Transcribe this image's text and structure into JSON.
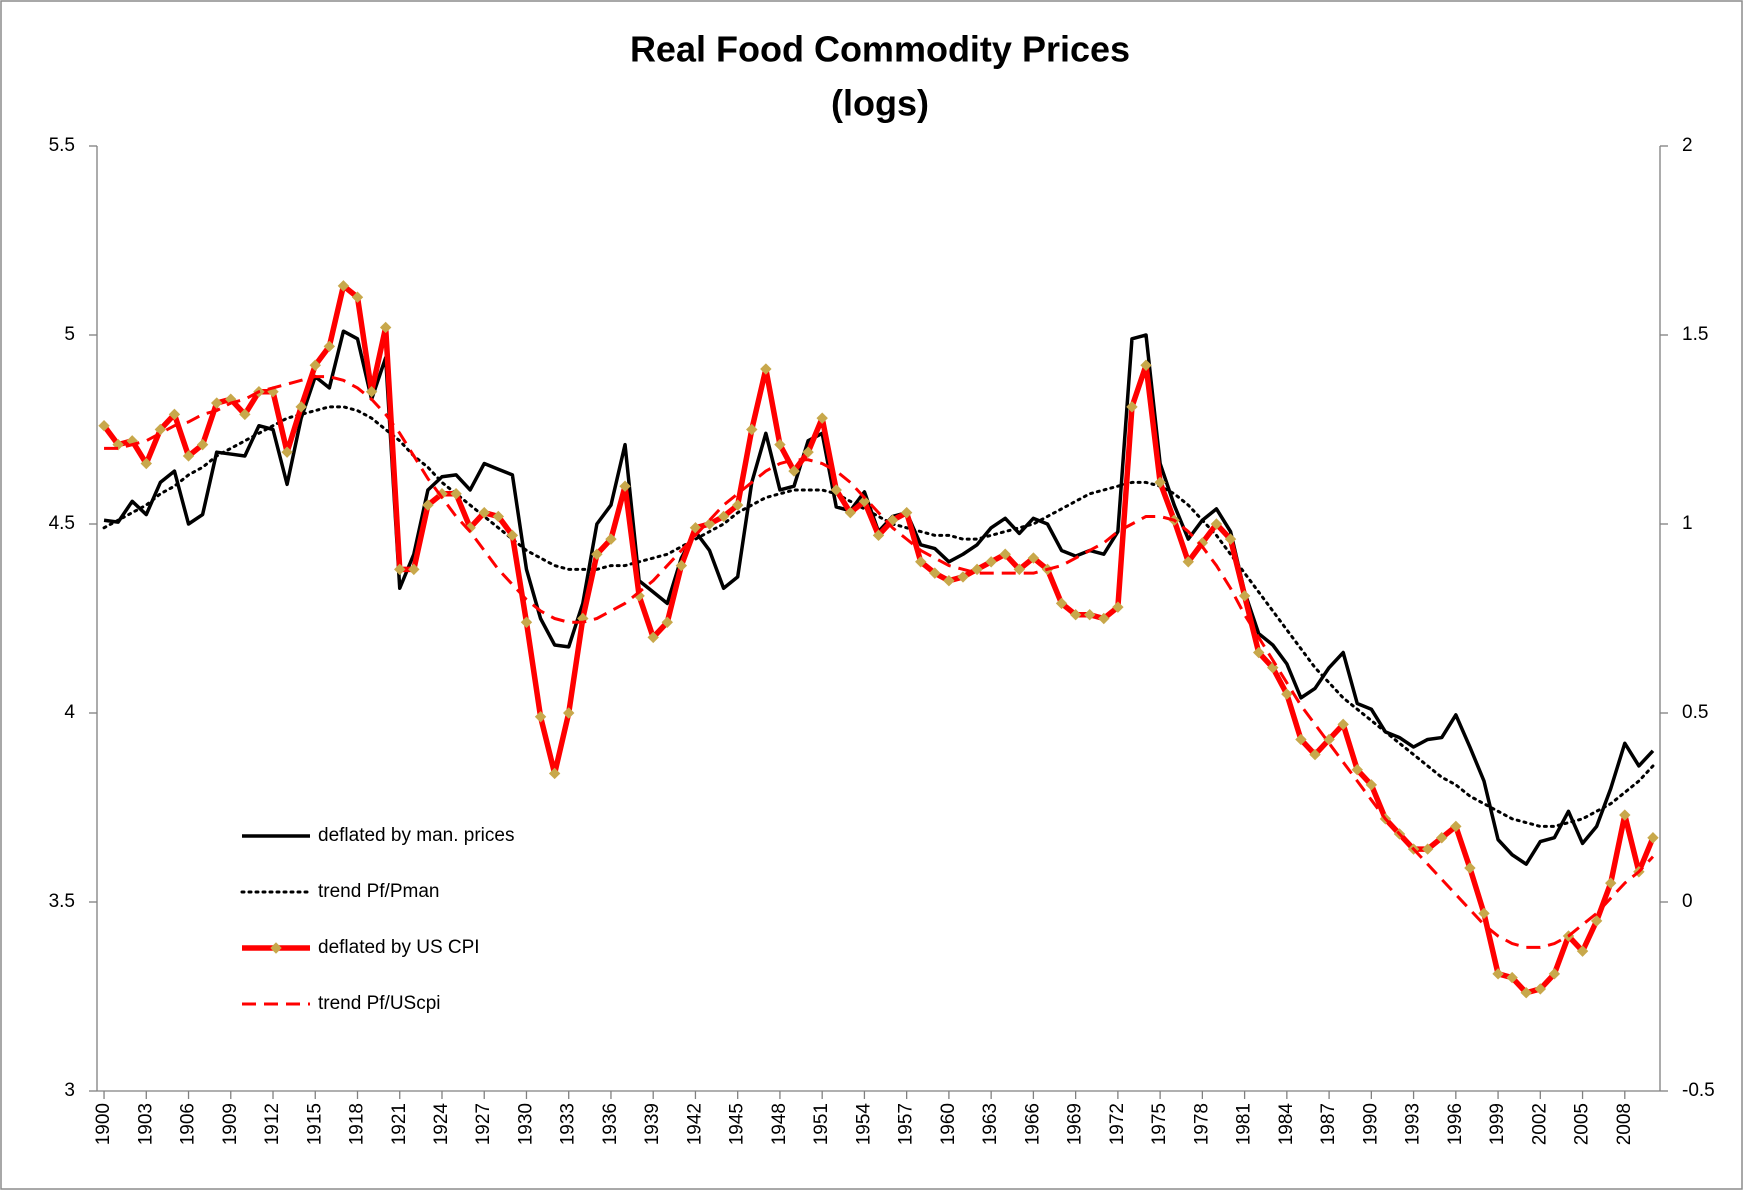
{
  "chart_data": {
    "type": "line",
    "title": "Real Food Commodity Prices",
    "subtitle": "(logs)",
    "x": [
      1900,
      1901,
      1902,
      1903,
      1904,
      1905,
      1906,
      1907,
      1908,
      1909,
      1910,
      1911,
      1912,
      1913,
      1914,
      1915,
      1916,
      1917,
      1918,
      1919,
      1920,
      1921,
      1922,
      1923,
      1924,
      1925,
      1926,
      1927,
      1928,
      1929,
      1930,
      1931,
      1932,
      1933,
      1934,
      1935,
      1936,
      1937,
      1938,
      1939,
      1940,
      1941,
      1942,
      1943,
      1944,
      1945,
      1946,
      1947,
      1948,
      1949,
      1950,
      1951,
      1952,
      1953,
      1954,
      1955,
      1956,
      1957,
      1958,
      1959,
      1960,
      1961,
      1962,
      1963,
      1964,
      1965,
      1966,
      1967,
      1968,
      1969,
      1970,
      1971,
      1972,
      1973,
      1974,
      1975,
      1976,
      1977,
      1978,
      1979,
      1980,
      1981,
      1982,
      1983,
      1984,
      1985,
      1986,
      1987,
      1988,
      1989,
      1990,
      1991,
      1992,
      1993,
      1994,
      1995,
      1996,
      1997,
      1998,
      1999,
      2000,
      2001,
      2002,
      2003,
      2004,
      2005,
      2006,
      2007,
      2008,
      2009,
      2010
    ],
    "xlim": [
      1899.5,
      2010.5
    ],
    "xticks": [
      1900,
      1903,
      1906,
      1909,
      1912,
      1915,
      1918,
      1921,
      1924,
      1927,
      1930,
      1933,
      1936,
      1939,
      1942,
      1945,
      1948,
      1951,
      1954,
      1957,
      1960,
      1963,
      1966,
      1969,
      1972,
      1975,
      1978,
      1981,
      1984,
      1987,
      1990,
      1993,
      1996,
      1999,
      2002,
      2005,
      2008
    ],
    "ylim": [
      3,
      5.5
    ],
    "yticks": [
      3,
      3.5,
      4,
      4.5,
      5,
      5.5
    ],
    "y2lim": [
      -0.5,
      2
    ],
    "y2ticks": [
      -0.5,
      0,
      0.5,
      1,
      1.5,
      2
    ],
    "legend": "lower left",
    "series": [
      {
        "name": "deflated by man. prices",
        "color": "#000000",
        "line_style": "solid",
        "values": [
          4.51,
          4.505,
          4.56,
          4.525,
          4.61,
          4.64,
          4.5,
          4.525,
          4.69,
          4.685,
          4.68,
          4.76,
          4.75,
          4.605,
          4.78,
          4.89,
          4.86,
          5.01,
          4.99,
          4.83,
          4.94,
          4.33,
          4.42,
          4.59,
          4.625,
          4.63,
          4.59,
          4.66,
          4.645,
          4.63,
          4.38,
          4.25,
          4.18,
          4.175,
          4.29,
          4.5,
          4.55,
          4.71,
          4.35,
          4.32,
          4.29,
          4.41,
          4.48,
          4.43,
          4.33,
          4.36,
          4.61,
          4.74,
          4.59,
          4.6,
          4.72,
          4.74,
          4.545,
          4.535,
          4.585,
          4.48,
          4.52,
          4.53,
          4.445,
          4.435,
          4.4,
          4.42,
          4.445,
          4.49,
          4.515,
          4.475,
          4.515,
          4.5,
          4.43,
          4.415,
          4.43,
          4.42,
          4.48,
          4.99,
          5.0,
          4.66,
          4.55,
          4.46,
          4.51,
          4.54,
          4.48,
          4.32,
          4.21,
          4.18,
          4.13,
          4.04,
          4.065,
          4.12,
          4.16,
          4.025,
          4.01,
          3.95,
          3.935,
          3.91,
          3.93,
          3.935,
          3.995,
          3.91,
          3.82,
          3.665,
          3.625,
          3.6,
          3.66,
          3.67,
          3.74,
          3.655,
          3.7,
          3.8,
          3.92,
          3.86,
          3.9
        ]
      },
      {
        "name": "trend Pf/Pman",
        "color": "#000000",
        "line_style": "dotted",
        "values": [
          4.49,
          4.51,
          4.53,
          4.55,
          4.58,
          4.6,
          4.63,
          4.65,
          4.68,
          4.7,
          4.72,
          4.74,
          4.76,
          4.78,
          4.79,
          4.8,
          4.81,
          4.81,
          4.8,
          4.78,
          4.75,
          4.72,
          4.68,
          4.65,
          4.61,
          4.58,
          4.55,
          4.52,
          4.49,
          4.46,
          4.43,
          4.41,
          4.39,
          4.38,
          4.38,
          4.38,
          4.39,
          4.39,
          4.4,
          4.41,
          4.42,
          4.44,
          4.46,
          4.48,
          4.5,
          4.53,
          4.55,
          4.57,
          4.58,
          4.59,
          4.59,
          4.59,
          4.58,
          4.56,
          4.54,
          4.52,
          4.5,
          4.49,
          4.48,
          4.47,
          4.47,
          4.46,
          4.46,
          4.47,
          4.48,
          4.49,
          4.5,
          4.52,
          4.54,
          4.56,
          4.58,
          4.59,
          4.6,
          4.61,
          4.61,
          4.6,
          4.58,
          4.55,
          4.51,
          4.47,
          4.42,
          4.37,
          4.32,
          4.27,
          4.22,
          4.17,
          4.12,
          4.08,
          4.04,
          4.01,
          3.98,
          3.95,
          3.92,
          3.89,
          3.86,
          3.83,
          3.81,
          3.78,
          3.76,
          3.74,
          3.72,
          3.71,
          3.7,
          3.7,
          3.71,
          3.72,
          3.74,
          3.76,
          3.79,
          3.82,
          3.86
        ]
      },
      {
        "name": "deflated by US CPI",
        "color": "#ff0000",
        "line_style": "solid",
        "axis": "y2",
        "marker": "diamond",
        "marker_color": "#c8a84b",
        "values": [
          1.26,
          1.21,
          1.22,
          1.16,
          1.25,
          1.29,
          1.18,
          1.21,
          1.32,
          1.33,
          1.29,
          1.35,
          1.35,
          1.19,
          1.31,
          1.42,
          1.47,
          1.63,
          1.6,
          1.35,
          1.52,
          0.88,
          0.88,
          1.05,
          1.08,
          1.08,
          0.99,
          1.03,
          1.02,
          0.97,
          0.74,
          0.49,
          0.34,
          0.5,
          0.75,
          0.92,
          0.96,
          1.1,
          0.81,
          0.7,
          0.74,
          0.89,
          0.99,
          1.0,
          1.02,
          1.05,
          1.25,
          1.41,
          1.21,
          1.14,
          1.19,
          1.28,
          1.09,
          1.03,
          1.06,
          0.97,
          1.01,
          1.03,
          0.9,
          0.87,
          0.85,
          0.86,
          0.88,
          0.9,
          0.92,
          0.88,
          0.91,
          0.88,
          0.79,
          0.76,
          0.76,
          0.75,
          0.78,
          1.31,
          1.42,
          1.11,
          1.01,
          0.9,
          0.95,
          1.0,
          0.96,
          0.81,
          0.66,
          0.62,
          0.55,
          0.43,
          0.39,
          0.43,
          0.47,
          0.35,
          0.31,
          0.22,
          0.18,
          0.14,
          0.14,
          0.17,
          0.2,
          0.09,
          -0.03,
          -0.19,
          -0.2,
          -0.24,
          -0.23,
          -0.19,
          -0.09,
          -0.13,
          -0.05,
          0.05,
          0.23,
          0.08,
          0.17
        ]
      },
      {
        "name": "trend Pf/UScpi",
        "color": "#ff0000",
        "line_style": "dashed",
        "axis": "y2",
        "values": [
          1.2,
          1.2,
          1.21,
          1.22,
          1.24,
          1.26,
          1.27,
          1.29,
          1.3,
          1.32,
          1.33,
          1.35,
          1.36,
          1.37,
          1.38,
          1.39,
          1.39,
          1.38,
          1.36,
          1.33,
          1.29,
          1.24,
          1.18,
          1.12,
          1.07,
          1.02,
          0.98,
          0.93,
          0.88,
          0.84,
          0.8,
          0.77,
          0.75,
          0.74,
          0.74,
          0.75,
          0.77,
          0.79,
          0.82,
          0.85,
          0.89,
          0.93,
          0.97,
          1.01,
          1.05,
          1.08,
          1.11,
          1.14,
          1.16,
          1.17,
          1.17,
          1.16,
          1.14,
          1.11,
          1.07,
          1.03,
          0.99,
          0.96,
          0.93,
          0.91,
          0.89,
          0.88,
          0.87,
          0.87,
          0.87,
          0.87,
          0.87,
          0.88,
          0.89,
          0.91,
          0.93,
          0.95,
          0.98,
          1.0,
          1.02,
          1.02,
          1.01,
          0.98,
          0.94,
          0.89,
          0.83,
          0.76,
          0.7,
          0.64,
          0.58,
          0.52,
          0.47,
          0.42,
          0.37,
          0.32,
          0.27,
          0.22,
          0.18,
          0.14,
          0.1,
          0.06,
          0.02,
          -0.02,
          -0.06,
          -0.09,
          -0.11,
          -0.12,
          -0.12,
          -0.11,
          -0.09,
          -0.06,
          -0.03,
          0.01,
          0.05,
          0.08,
          0.12
        ]
      }
    ]
  }
}
